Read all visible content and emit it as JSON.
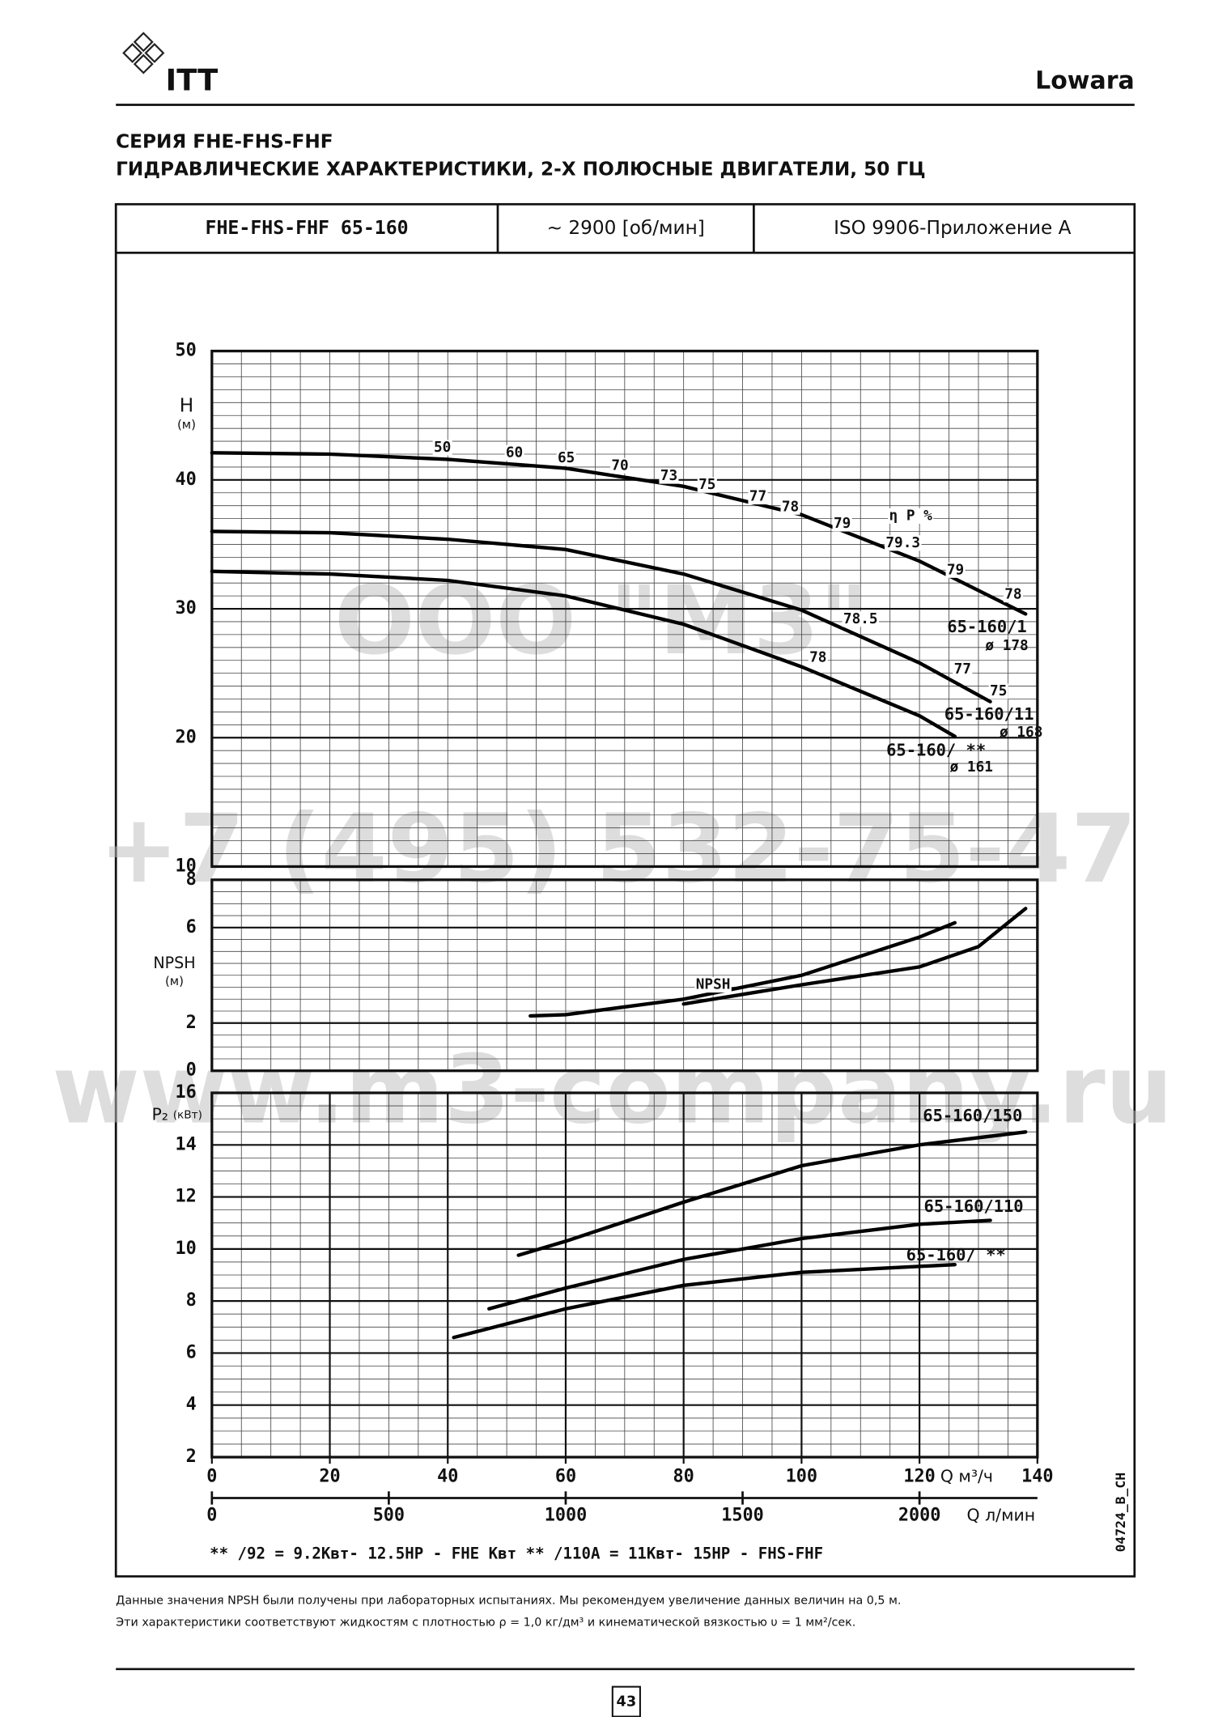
{
  "header": {
    "brand": "ITT",
    "company": "Lowara"
  },
  "title": [
    "СЕРИЯ FHE-FHS-FHF",
    "ГИДРАВЛИЧЕСКИЕ ХАРАКТЕРИСТИКИ, 2-Х ПОЛЮСНЫЕ ДВИГАТЕЛИ, 50 ГЦ"
  ],
  "table": {
    "cells": [
      "FHE-FHS-FHF 65-160",
      "~ 2900 [об/мин]",
      "ISO 9906-Приложение A"
    ]
  },
  "watermarks": [
    "ООО \"М3\"",
    "+7 (495) 532-75-47",
    "www.m3-company.ru"
  ],
  "chart_data": [
    {
      "type": "line",
      "ylabel": "H",
      "yunit": "(м)",
      "xlim": [
        0,
        140
      ],
      "ylim": [
        10,
        50
      ],
      "yticks": [
        10,
        20,
        30,
        40,
        50
      ],
      "series": [
        {
          "name": "65-160/1",
          "sub": "ø 178",
          "x": [
            0,
            20,
            40,
            60,
            80,
            100,
            120,
            138
          ],
          "values": [
            42.1,
            42.0,
            41.6,
            40.9,
            39.5,
            37.3,
            33.7,
            29.6
          ]
        },
        {
          "name": "65-160/11",
          "sub": "ø 168",
          "x": [
            0,
            20,
            40,
            60,
            80,
            100,
            120,
            132
          ],
          "values": [
            36.0,
            35.9,
            35.4,
            34.6,
            32.7,
            29.9,
            25.8,
            22.8
          ]
        },
        {
          "name": "65-160/ **",
          "sub": "ø 161",
          "x": [
            0,
            20,
            40,
            60,
            80,
            100,
            120,
            126
          ],
          "values": [
            32.9,
            32.7,
            32.2,
            31.0,
            28.8,
            25.5,
            21.7,
            20.1
          ]
        }
      ],
      "annotations": [
        {
          "text": "50",
          "x": 39.1,
          "y": 42.5
        },
        {
          "text": "60",
          "x": 51.3,
          "y": 42.1
        },
        {
          "text": "65",
          "x": 60.1,
          "y": 41.7
        },
        {
          "text": "70",
          "x": 69.2,
          "y": 41.1
        },
        {
          "text": "73",
          "x": 77.5,
          "y": 40.3
        },
        {
          "text": "75",
          "x": 84.0,
          "y": 39.6
        },
        {
          "text": "77",
          "x": 92.6,
          "y": 38.7
        },
        {
          "text": "78",
          "x": 98.1,
          "y": 37.9
        },
        {
          "text": "79",
          "x": 106.9,
          "y": 36.6
        },
        {
          "text": "79.3",
          "x": 117.2,
          "y": 35.1
        },
        {
          "text": "79",
          "x": 126.1,
          "y": 33.0
        },
        {
          "text": "78",
          "x": 135.9,
          "y": 31.1
        },
        {
          "text": "78.5",
          "x": 110.0,
          "y": 29.2
        },
        {
          "text": "78",
          "x": 102.8,
          "y": 26.2
        },
        {
          "text": "77",
          "x": 127.3,
          "y": 25.3
        },
        {
          "text": "75",
          "x": 133.4,
          "y": 23.6
        },
        {
          "text": "η P %",
          "x": 118.5,
          "y": 37.2
        }
      ]
    },
    {
      "type": "line",
      "ylabel": "NPSH",
      "yunit": "(м)",
      "xlim": [
        0,
        140
      ],
      "ylim": [
        0,
        8
      ],
      "yticks": [
        0,
        2,
        6,
        8
      ],
      "series": [
        {
          "x": [
            54,
            60,
            80,
            100,
            110,
            120,
            126
          ],
          "values": [
            2.3,
            2.35,
            3.0,
            4.0,
            4.8,
            5.6,
            6.2
          ]
        },
        {
          "x": [
            80,
            100,
            120,
            130,
            138
          ],
          "values": [
            2.8,
            3.6,
            4.35,
            5.2,
            6.8
          ]
        }
      ],
      "annotations": [
        {
          "text": "NPSH",
          "x": 85,
          "y": 3.6
        }
      ]
    },
    {
      "type": "line",
      "ylabel": "P₂",
      "yunit": "(кВт)",
      "xlim": [
        0,
        140
      ],
      "xticks": [
        0,
        20,
        40,
        60,
        80,
        100,
        120,
        140
      ],
      "xlabel": "Q м³/ч",
      "x2lim": [
        0,
        2333.33
      ],
      "x2ticks": [
        0,
        500,
        1000,
        1500,
        2000
      ],
      "x2label": "Q л/мин",
      "ylim": [
        2,
        16
      ],
      "yticks": [
        2,
        4,
        6,
        8,
        10,
        12,
        14,
        16
      ],
      "series": [
        {
          "name": "65-160/150",
          "x": [
            52,
            60,
            80,
            100,
            120,
            138
          ],
          "values": [
            9.76,
            10.3,
            11.8,
            13.2,
            14.0,
            14.5
          ]
        },
        {
          "name": "65-160/110",
          "x": [
            47,
            60,
            80,
            100,
            120,
            132
          ],
          "values": [
            7.7,
            8.5,
            9.6,
            10.4,
            10.95,
            11.1
          ]
        },
        {
          "name": "65-160/ **",
          "x": [
            41,
            60,
            80,
            100,
            126
          ],
          "values": [
            6.6,
            7.7,
            8.6,
            9.1,
            9.4
          ]
        }
      ]
    }
  ],
  "chart_footnote": "** /92 = 9.2Квт- 12.5HP - FHE    Квт ** /110A = 11Квт- 15HP - FHS-FHF",
  "drawing_code": "04724_B_CH",
  "notes": [
    "Данные значения NPSH были получены при лабораторных испытаниях. Мы рекомендуем увеличение данных величин на 0,5 м.",
    "Эти характеристики соответствуют жидкостям с плотностью ρ = 1,0 кг/дм³ и кинематической вязкостью υ = 1 мм²/сек."
  ],
  "page_number": "43"
}
